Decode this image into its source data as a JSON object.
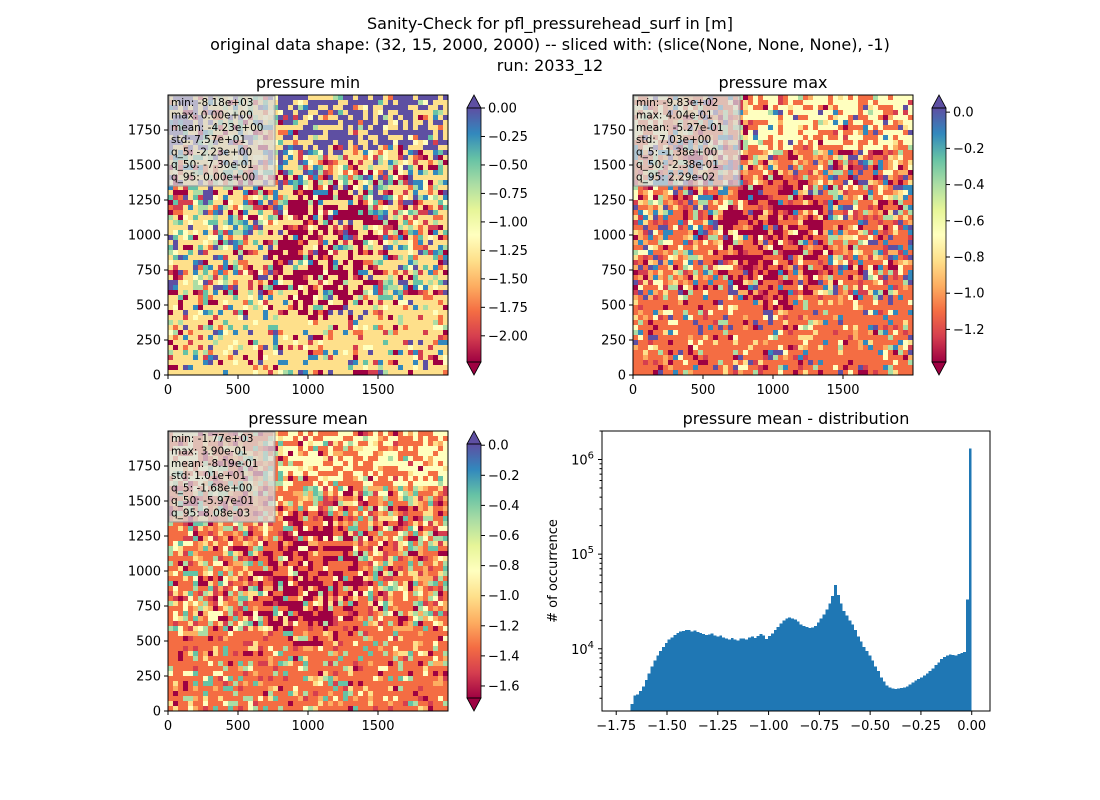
{
  "figure": {
    "title_lines": [
      "Sanity-Check for pfl_pressurehead_surf in [m]",
      "original data shape: (32, 15, 2000, 2000) -- sliced with: (slice(None, None, None), -1)",
      "run: 2033_12"
    ]
  },
  "chart_data": [
    {
      "type": "heatmap",
      "title": "pressure min",
      "xlim": [
        0,
        2000
      ],
      "ylim": [
        0,
        2000
      ],
      "xticks": [
        0,
        500,
        1000,
        1500
      ],
      "yticks": [
        0,
        250,
        500,
        750,
        1000,
        1250,
        1500,
        1750
      ],
      "colormap": "Spectral",
      "colorbar": {
        "vmin": -2.23,
        "vmax": 0.0,
        "ticks": [
          "0.00",
          "-0.25",
          "-0.50",
          "-0.75",
          "-1.00",
          "-1.25",
          "-1.50",
          "-1.75",
          "-2.00"
        ],
        "extend": "both"
      },
      "stats": [
        "min: -8.18e+03",
        "max: 0.00e+00",
        "mean: -4.23e+00",
        "std: 7.57e+01",
        "q_5: -2.23e+00",
        "q_50: -7.30e-01",
        "q_95: 0.00e+00"
      ]
    },
    {
      "type": "heatmap",
      "title": "pressure max",
      "xlim": [
        0,
        2000
      ],
      "ylim": [
        0,
        2000
      ],
      "xticks": [
        0,
        500,
        1000,
        1500
      ],
      "yticks": [
        0,
        250,
        500,
        750,
        1000,
        1250,
        1500,
        1750
      ],
      "colormap": "Spectral",
      "colorbar": {
        "vmin": -1.38,
        "vmax": 0.0229,
        "ticks": [
          "0.0",
          "-0.2",
          "-0.4",
          "-0.6",
          "-0.8",
          "-1.0",
          "-1.2"
        ],
        "extend": "both"
      },
      "stats": [
        "min: -9.83e+02",
        "max: 4.04e-01",
        "mean: -5.27e-01",
        "std: 7.03e+00",
        "q_5: -1.38e+00",
        "q_50: -2.38e-01",
        "q_95: 2.29e-02"
      ]
    },
    {
      "type": "heatmap",
      "title": "pressure mean",
      "xlim": [
        0,
        2000
      ],
      "ylim": [
        0,
        2000
      ],
      "xticks": [
        0,
        500,
        1000,
        1500
      ],
      "yticks": [
        0,
        250,
        500,
        750,
        1000,
        1250,
        1500,
        1750
      ],
      "colormap": "Spectral",
      "colorbar": {
        "vmin": -1.68,
        "vmax": 0.00808,
        "ticks": [
          "0.0",
          "-0.2",
          "-0.4",
          "-0.6",
          "-0.8",
          "-1.0",
          "-1.2",
          "-1.4",
          "-1.6"
        ],
        "extend": "both"
      },
      "stats": [
        "min: -1.77e+03",
        "max: 3.90e-01",
        "mean: -8.19e-01",
        "std: 1.01e+01",
        "q_5: -1.68e+00",
        "q_50: -5.97e-01",
        "q_95: 8.08e-03"
      ]
    },
    {
      "type": "bar",
      "title": "pressure mean - distribution",
      "ylabel": "# of occurrence",
      "y_scale": "log",
      "xlim": [
        -1.82,
        0.09
      ],
      "ylim": [
        2200,
        2000000
      ],
      "xticks": [
        "-1.75",
        "-1.50",
        "-1.25",
        "-1.00",
        "-0.75",
        "-0.50",
        "-0.25",
        "0.00"
      ],
      "yticks": [
        "10^4",
        "10^5",
        "10^6"
      ],
      "bin_range": [
        -1.68,
        0.0
      ],
      "color": "#1f77b4",
      "values": [
        2600,
        3200,
        3300,
        3600,
        4000,
        4700,
        5500,
        6500,
        7500,
        8500,
        9500,
        10500,
        11500,
        12500,
        13200,
        14000,
        14600,
        15200,
        15500,
        15700,
        15800,
        15200,
        15600,
        15000,
        14600,
        14300,
        14000,
        14200,
        14500,
        13800,
        13500,
        13800,
        13200,
        12800,
        12600,
        13000,
        12500,
        12200,
        12800,
        12900,
        12600,
        13100,
        13400,
        13000,
        13700,
        14400,
        13800,
        12700,
        13600,
        14500,
        15800,
        17000,
        18500,
        20000,
        21000,
        21500,
        21000,
        20500,
        19500,
        18000,
        17500,
        17000,
        16500,
        16800,
        17500,
        19000,
        21000,
        23000,
        26000,
        30000,
        36000,
        47000,
        37000,
        30000,
        25000,
        22500,
        20000,
        18000,
        15800,
        13500,
        12000,
        10500,
        9500,
        8500,
        7500,
        6500,
        5800,
        5000,
        4500,
        4100,
        3900,
        3800,
        3750,
        3800,
        3850,
        3900,
        4000,
        4200,
        4400,
        4600,
        4800,
        5000,
        5200,
        5500,
        5800,
        6200,
        6700,
        7200,
        7800,
        8200,
        8500,
        8700,
        8600,
        8500,
        8800,
        9000,
        9300,
        33000,
        1300000
      ]
    }
  ]
}
